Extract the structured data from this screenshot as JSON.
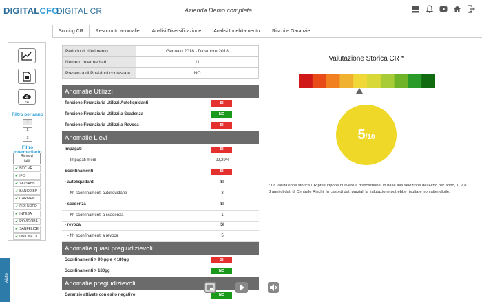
{
  "header": {
    "logo_main": "DIGITAL",
    "logo_accent": "CFO",
    "app_title": "DIGITAL CR",
    "company": "Azienda Demo completa",
    "icons": [
      "server-icon",
      "bell-icon",
      "youtube-icon",
      "home-icon",
      "logout-icon"
    ]
  },
  "tabs": [
    {
      "label": "Scoring CR"
    },
    {
      "label": "Resoconto anomalie"
    },
    {
      "label": "Analisi Diversificazione"
    },
    {
      "label": "Analisi Indebitamento"
    },
    {
      "label": "Rischi e Garanzie"
    }
  ],
  "sidebar": {
    "pdf_caption": "CR",
    "year_filter_label": "Filtro per anno",
    "years": [
      "1",
      "2",
      "3"
    ],
    "intermediary_filter_label": "Filtro Intermediario",
    "remove_label_1": "Rimuovi",
    "remove_label_2": "tutti",
    "banks": [
      "BCC VR",
      "IFIS",
      "VALSABB",
      "BANCO BP",
      "CARIVEN",
      "FIDI NORD",
      "INTESA",
      "ROVIGOBA",
      "SANFELICE",
      "UNIONE DI"
    ]
  },
  "left_strip_label": "Aiuto",
  "info": [
    {
      "key": "Periodo di riferimento",
      "value": "Gennaio 2018 - Dicembre 2018"
    },
    {
      "key": "Numero Intermediari",
      "value": "11"
    },
    {
      "key": "Presenza di Posizioni contestate",
      "value": "NO"
    }
  ],
  "sections": {
    "utilizzi": "Anomalie Utilizzi",
    "lievi": "Anomalie Lievi",
    "quasi": "Anomalie quasi pregiudizievoli",
    "preg": "Anomalie pregiudizievoli"
  },
  "rows": {
    "u1": {
      "label": "Tensione Finanziaria Utilizzi Autoliquidanti",
      "value": "SI"
    },
    "u2": {
      "label": "Tensione Finanziaria Utilizzi a Scadenza",
      "value": "NO"
    },
    "u3": {
      "label": "Tensione Finanziaria Utilizzi a Revoca",
      "value": "SI"
    },
    "l1": {
      "label": "Impagati",
      "value": "SI"
    },
    "l2": {
      "label": "- Impagati medi",
      "value": "22,29%"
    },
    "l3": {
      "label": "Sconfinamenti",
      "value": "SI"
    },
    "l4": {
      "label": "- autoliquidanti",
      "value": "SI"
    },
    "l5": {
      "label": "- N° sconfinamenti autoliquidanti",
      "value": "3"
    },
    "l6": {
      "label": "- scadenza",
      "value": "SI"
    },
    "l7": {
      "label": "- N° sconfinamenti a scadenza",
      "value": "1"
    },
    "l8": {
      "label": "- revoca",
      "value": "SI"
    },
    "l9": {
      "label": "- N° sconfinamenti a revoca",
      "value": "5"
    },
    "q1": {
      "label": "Sconfinamenti > 90 gg e < 180gg",
      "value": "SI"
    },
    "q2": {
      "label": "Sconfinamenti > 180gg",
      "value": "NO"
    },
    "p1": {
      "label": "Garanzie attivate con esito negativo",
      "value": "NO"
    }
  },
  "rating": {
    "title": "Valutazione Storica CR *",
    "score": "5",
    "scale_max": "/10",
    "scale_colors": [
      "#d01818",
      "#e84a18",
      "#f08020",
      "#f0b030",
      "#f0d838",
      "#d8d838",
      "#a8cc38",
      "#6fb428",
      "#2a9a28",
      "#106b10"
    ],
    "level_fraction": 0.5,
    "note": "* La valutazione storica CR presuppone di avere a disposizione, in base alla selezione del Filtro per anno, 1, 2 o 3 anni di dati di Centrale Rischi. In caso di dati parziali la valutazione potrebbe risultare non attendibile."
  }
}
